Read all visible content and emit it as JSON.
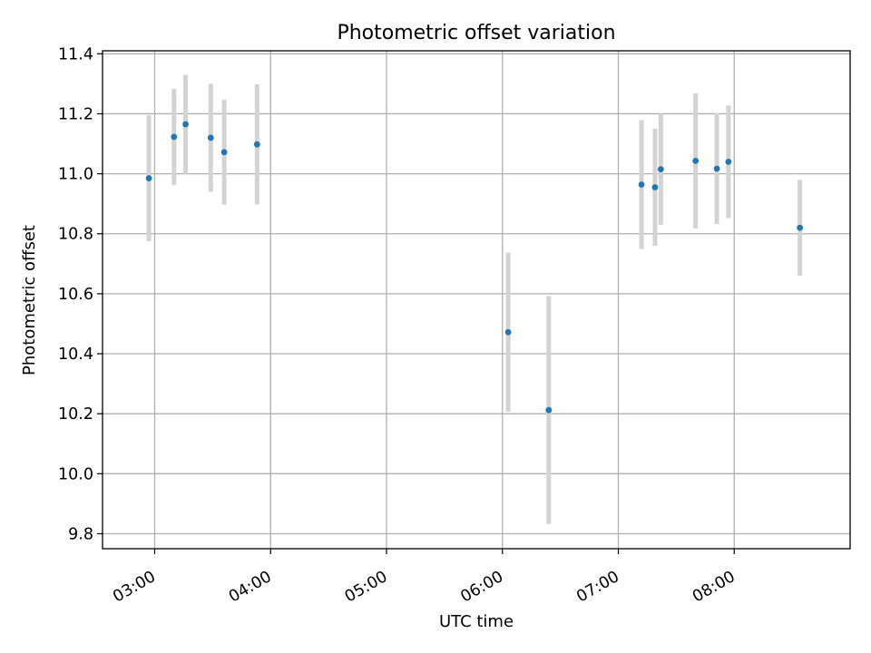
{
  "chart_data": {
    "type": "scatter",
    "title": "Photometric offset variation",
    "xlabel": "UTC time",
    "ylabel": "Photometric offset",
    "grid": true,
    "x_ticks": [
      "03:00",
      "04:00",
      "05:00",
      "06:00",
      "07:00",
      "08:00"
    ],
    "x_range": [
      "02:33",
      "09:00"
    ],
    "ylim": [
      9.75,
      11.41
    ],
    "y_ticks": [
      "9.8",
      "10.0",
      "10.2",
      "10.4",
      "10.6",
      "10.8",
      "11.0",
      "11.2",
      "11.4"
    ],
    "colors": {
      "marker": "#1f77b4",
      "errorbar": "#d3d3d3"
    },
    "series": [
      {
        "points": [
          {
            "x": "02:57",
            "y": 10.985,
            "err": 0.21
          },
          {
            "x": "03:10",
            "y": 11.123,
            "err": 0.16
          },
          {
            "x": "03:16",
            "y": 11.165,
            "err": 0.165
          },
          {
            "x": "03:29",
            "y": 11.12,
            "err": 0.18
          },
          {
            "x": "03:36",
            "y": 11.072,
            "err": 0.175
          },
          {
            "x": "03:53",
            "y": 11.098,
            "err": 0.2
          },
          {
            "x": "06:03",
            "y": 10.472,
            "err": 0.265
          },
          {
            "x": "06:24",
            "y": 10.212,
            "err": 0.38
          },
          {
            "x": "07:12",
            "y": 10.964,
            "err": 0.215
          },
          {
            "x": "07:19",
            "y": 10.955,
            "err": 0.195
          },
          {
            "x": "07:22",
            "y": 11.015,
            "err": 0.185
          },
          {
            "x": "07:40",
            "y": 11.043,
            "err": 0.225
          },
          {
            "x": "07:51",
            "y": 11.017,
            "err": 0.185
          },
          {
            "x": "07:57",
            "y": 11.04,
            "err": 0.188
          },
          {
            "x": "08:34",
            "y": 10.82,
            "err": 0.16
          }
        ]
      }
    ]
  }
}
